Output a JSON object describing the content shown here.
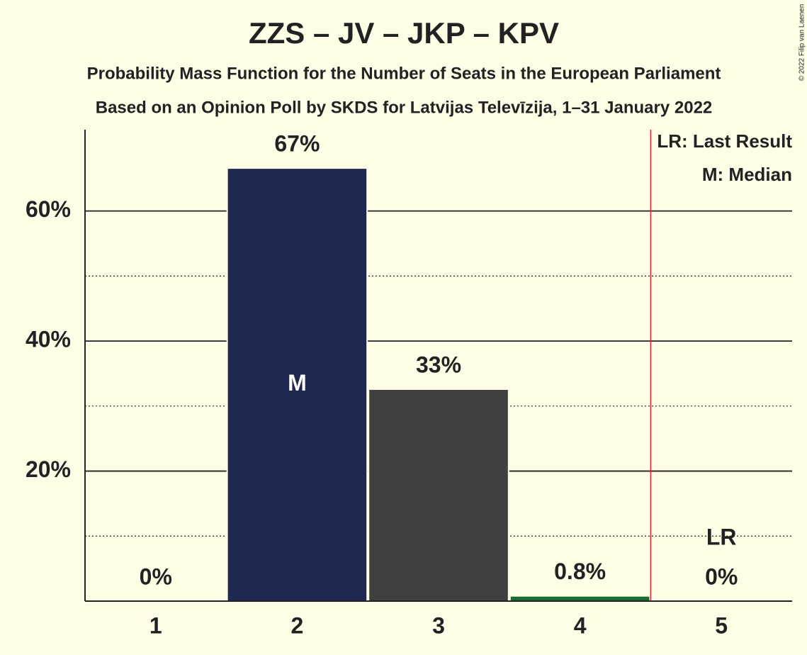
{
  "chart_data": {
    "type": "bar",
    "title": "ZZS – JV – JKP – KPV",
    "subtitle": "Probability Mass Function for the Number of Seats in the European Parliament",
    "subtitle2": "Based on an Opinion Poll by SKDS for Latvijas Televīzija, 1–31 January 2022",
    "copyright": "© 2022 Filip van Laenen",
    "categories": [
      "1",
      "2",
      "3",
      "4",
      "5"
    ],
    "values": [
      0,
      66.6,
      32.6,
      0.8,
      0
    ],
    "value_labels": [
      "0%",
      "67%",
      "33%",
      "0.8%",
      "0%"
    ],
    "colors": [
      "#1f2850",
      "#1f2850",
      "#404040",
      "#1a6b2e",
      "#1f2850"
    ],
    "ylim": [
      0,
      72.5
    ],
    "yticks": [
      {
        "value": 20,
        "label": "20%"
      },
      {
        "value": 40,
        "label": "40%"
      },
      {
        "value": 60,
        "label": "60%"
      }
    ],
    "minor_yticks": [
      10,
      30,
      50
    ],
    "grid": true,
    "median": {
      "category": "2",
      "label": "M"
    },
    "last_result": {
      "category": "5",
      "label": "LR",
      "color": "#e0202a"
    },
    "legend": [
      "LR: Last Result",
      "M: Median"
    ]
  }
}
